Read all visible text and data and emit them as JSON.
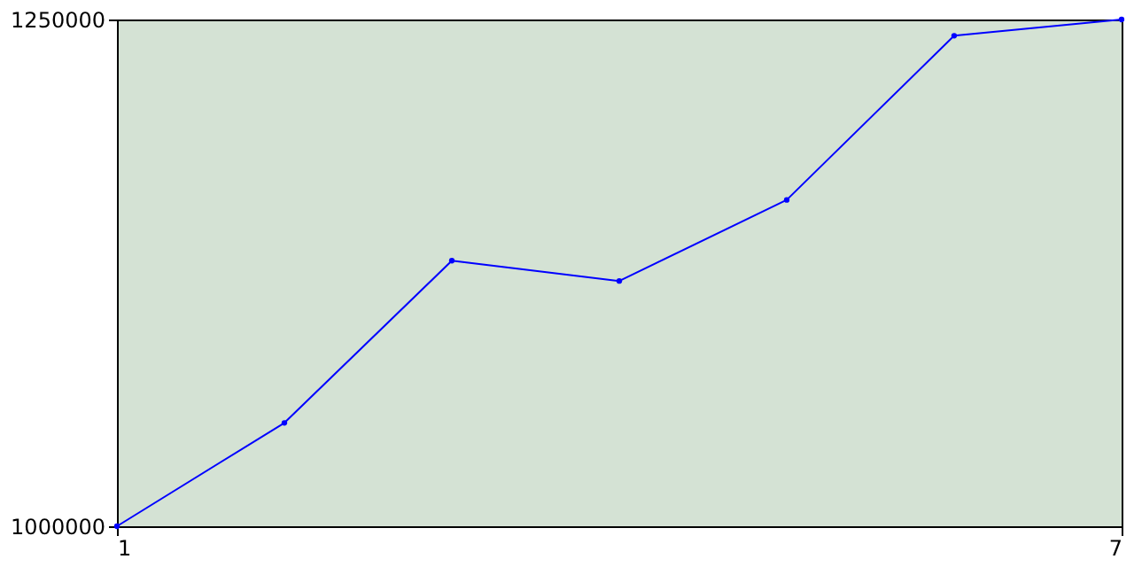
{
  "chart_data": {
    "type": "line",
    "x": [
      1,
      2,
      3,
      4,
      5,
      6,
      7
    ],
    "series": [
      {
        "color": "#0000ff",
        "values": [
          1000000,
          1051000,
          1131000,
          1121000,
          1161000,
          1242000,
          1250000
        ]
      }
    ],
    "xlim": [
      1,
      7
    ],
    "xticks": [
      1,
      7
    ],
    "ylim": [
      1000000,
      1250000
    ],
    "yticks": [
      1000000,
      1250000
    ],
    "grid": false,
    "marker": "circle",
    "line_style": "solid"
  }
}
